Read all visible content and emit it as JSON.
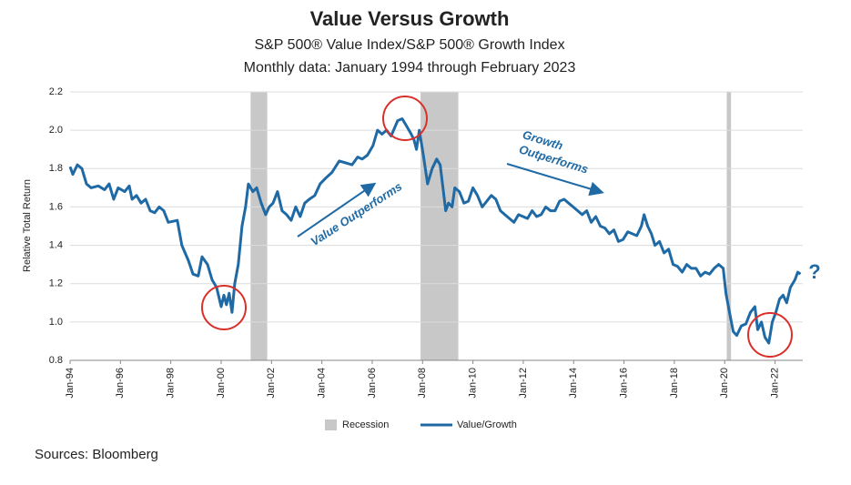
{
  "chart_data": {
    "type": "line",
    "title": "Value Versus Growth",
    "subtitle": "S&P 500® Value Index/S&P 500® Growth Index",
    "subtitle2": "Monthly data: January 1994 through February 2023",
    "ylabel": "Relative Total Return",
    "source": "Sources: Bloomberg",
    "annotations": [
      "Value Outperforms",
      "Growth",
      "Outperforms",
      "?"
    ],
    "xlim": [
      1994,
      2023.1
    ],
    "xticks": [
      {
        "value": 1994,
        "label": "Jan-94"
      },
      {
        "value": 1996,
        "label": "Jan-96"
      },
      {
        "value": 1998,
        "label": "Jan-98"
      },
      {
        "value": 2000,
        "label": "Jan-00"
      },
      {
        "value": 2002,
        "label": "Jan-02"
      },
      {
        "value": 2004,
        "label": "Jan-04"
      },
      {
        "value": 2006,
        "label": "Jan-06"
      },
      {
        "value": 2008,
        "label": "Jan-08"
      },
      {
        "value": 2010,
        "label": "Jan-10"
      },
      {
        "value": 2012,
        "label": "Jan-12"
      },
      {
        "value": 2014,
        "label": "Jan-14"
      },
      {
        "value": 2016,
        "label": "Jan-16"
      },
      {
        "value": 2018,
        "label": "Jan-18"
      },
      {
        "value": 2020,
        "label": "Jan-20"
      },
      {
        "value": 2022,
        "label": "Jan-22"
      }
    ],
    "ylim": [
      0.8,
      2.2
    ],
    "yticks": [
      0.8,
      {
        "value": 1,
        "label": "1.0"
      },
      1.2,
      1.4,
      1.6,
      1.8,
      {
        "value": 2,
        "label": "2.0"
      },
      2.2
    ],
    "grid": true,
    "recessions": {
      "name": "Recession",
      "color": "#c8c8c8",
      "periods": [
        [
          2001.17,
          2001.83
        ],
        [
          2007.92,
          2009.42
        ],
        [
          2020.08,
          2020.25
        ]
      ]
    },
    "x": [
      1994.0,
      1994.11,
      1994.29,
      1994.47,
      1994.65,
      1994.83,
      1995.12,
      1995.37,
      1995.55,
      1995.73,
      1995.91,
      1996.17,
      1996.35,
      1996.46,
      1996.64,
      1996.82,
      1997.0,
      1997.18,
      1997.36,
      1997.54,
      1997.72,
      1997.9,
      1998.26,
      1998.44,
      1998.7,
      1998.88,
      1999.09,
      1999.24,
      1999.46,
      1999.64,
      1999.82,
      2000.0,
      2000.11,
      2000.21,
      2000.32,
      2000.43,
      2000.54,
      2000.68,
      2000.83,
      2000.97,
      2001.08,
      2001.26,
      2001.41,
      2001.59,
      2001.77,
      2001.91,
      2002.06,
      2002.24,
      2002.42,
      2002.6,
      2002.78,
      2002.96,
      2003.14,
      2003.32,
      2003.5,
      2003.72,
      2003.93,
      2004.15,
      2004.4,
      2004.69,
      2004.95,
      2005.2,
      2005.42,
      2005.6,
      2005.81,
      2006.03,
      2006.21,
      2006.39,
      2006.57,
      2006.75,
      2007.01,
      2007.19,
      2007.37,
      2007.55,
      2007.66,
      2007.76,
      2007.87,
      2008.02,
      2008.2,
      2008.38,
      2008.56,
      2008.7,
      2008.81,
      2008.92,
      2009.03,
      2009.17,
      2009.28,
      2009.46,
      2009.64,
      2009.82,
      2010.0,
      2010.18,
      2010.37,
      2010.73,
      2010.91,
      2011.09,
      2011.27,
      2011.45,
      2011.63,
      2011.81,
      2011.99,
      2012.17,
      2012.35,
      2012.53,
      2012.71,
      2012.89,
      2013.08,
      2013.26,
      2013.44,
      2013.62,
      2013.8,
      2013.98,
      2014.16,
      2014.34,
      2014.52,
      2014.7,
      2014.88,
      2015.06,
      2015.24,
      2015.42,
      2015.6,
      2015.78,
      2015.96,
      2016.15,
      2016.33,
      2016.51,
      2016.69,
      2016.8,
      2016.94,
      2017.09,
      2017.23,
      2017.41,
      2017.59,
      2017.77,
      2017.95,
      2018.13,
      2018.31,
      2018.49,
      2018.67,
      2018.86,
      2019.04,
      2019.22,
      2019.4,
      2019.58,
      2019.76,
      2019.94,
      2020.05,
      2020.19,
      2020.34,
      2020.48,
      2020.66,
      2020.84,
      2021.02,
      2021.2,
      2021.31,
      2021.46,
      2021.6,
      2021.75,
      2021.89,
      2022.03,
      2022.18,
      2022.32,
      2022.46,
      2022.61,
      2022.79,
      2022.9,
      2023.01
    ],
    "series": [
      {
        "name": "Value/Growth",
        "color": "#1f6aa5",
        "values": [
          1.81,
          1.77,
          1.82,
          1.8,
          1.72,
          1.7,
          1.71,
          1.69,
          1.72,
          1.64,
          1.7,
          1.68,
          1.71,
          1.64,
          1.66,
          1.62,
          1.64,
          1.58,
          1.57,
          1.6,
          1.58,
          1.52,
          1.53,
          1.4,
          1.32,
          1.25,
          1.24,
          1.34,
          1.3,
          1.22,
          1.18,
          1.08,
          1.14,
          1.09,
          1.15,
          1.05,
          1.2,
          1.3,
          1.5,
          1.6,
          1.72,
          1.68,
          1.7,
          1.62,
          1.56,
          1.6,
          1.62,
          1.68,
          1.58,
          1.56,
          1.53,
          1.6,
          1.55,
          1.62,
          1.64,
          1.66,
          1.72,
          1.75,
          1.78,
          1.84,
          1.83,
          1.82,
          1.86,
          1.85,
          1.87,
          1.92,
          2.0,
          1.98,
          2.0,
          1.97,
          2.05,
          2.06,
          2.02,
          1.98,
          1.95,
          1.9,
          2.0,
          1.88,
          1.72,
          1.8,
          1.85,
          1.82,
          1.7,
          1.58,
          1.62,
          1.6,
          1.7,
          1.68,
          1.62,
          1.63,
          1.7,
          1.66,
          1.6,
          1.66,
          1.64,
          1.58,
          1.56,
          1.54,
          1.52,
          1.56,
          1.55,
          1.54,
          1.58,
          1.55,
          1.56,
          1.6,
          1.58,
          1.58,
          1.63,
          1.64,
          1.62,
          1.6,
          1.58,
          1.56,
          1.58,
          1.52,
          1.55,
          1.5,
          1.49,
          1.46,
          1.48,
          1.42,
          1.43,
          1.47,
          1.46,
          1.45,
          1.5,
          1.56,
          1.5,
          1.46,
          1.4,
          1.42,
          1.36,
          1.38,
          1.3,
          1.29,
          1.26,
          1.3,
          1.28,
          1.28,
          1.24,
          1.26,
          1.25,
          1.28,
          1.3,
          1.28,
          1.15,
          1.05,
          0.95,
          0.93,
          0.98,
          0.99,
          1.05,
          1.08,
          0.96,
          1.0,
          0.92,
          0.89,
          1.0,
          1.05,
          1.12,
          1.14,
          1.1,
          1.18,
          1.22,
          1.26,
          1.25
        ]
      }
    ]
  }
}
